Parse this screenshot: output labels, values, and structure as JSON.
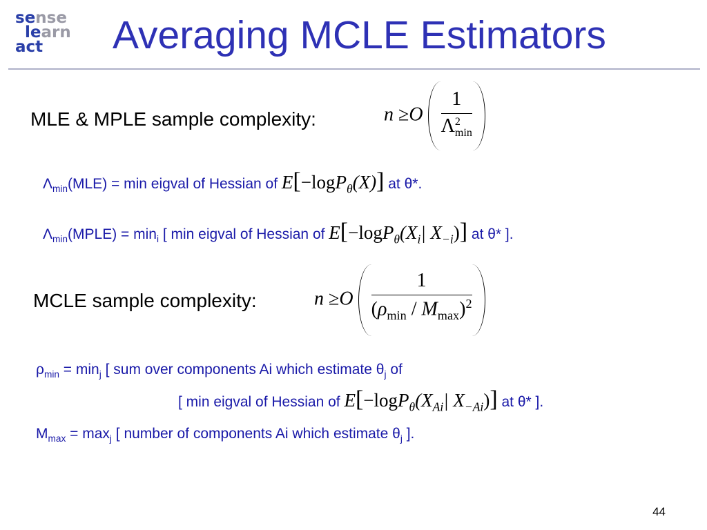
{
  "logo": {
    "parts": [
      "se",
      "nse",
      "le",
      "arn",
      "act"
    ]
  },
  "title": "Averaging MCLE Estimators",
  "mle_label": "MLE & MPLE sample complexity:",
  "mle_formula": [
    "n",
    "≥",
    "O",
    "1",
    "Λ",
    "2",
    "min"
  ],
  "mle_def": [
    "Λ",
    "min",
    "(MLE) = min eigval of Hessian of",
    "E",
    "[",
    "−log",
    "P",
    "θ",
    "(X)",
    "]",
    "at θ*."
  ],
  "mple_def": [
    "Λ",
    "min",
    "(MPLE) = min",
    "i",
    "[ min eigval of Hessian of",
    "E",
    "[",
    "−log",
    "P",
    "θ",
    "(X",
    "i",
    "| X",
    "−i",
    ")",
    "]",
    "at θ* ]."
  ],
  "mcle_label": "MCLE sample complexity:",
  "mcle_formula": [
    "n",
    "≥",
    "O",
    "1",
    "(",
    "ρ",
    "min",
    "/",
    "M",
    "max",
    ")",
    "2"
  ],
  "rho_def": [
    "ρ",
    "min",
    "= min",
    "j",
    "[ sum over components Ai which estimate θ",
    "j",
    "of"
  ],
  "rho_def2": [
    "[ min eigval of Hessian of",
    "E",
    "[",
    "−log",
    "P",
    "θ",
    "(X",
    "Ai",
    "| X",
    "−Ai",
    ")",
    "]",
    "at θ* ]."
  ],
  "m_def": [
    "M",
    "max",
    "= max",
    "j",
    "[ number of components Ai which estimate θ",
    "j",
    "]."
  ],
  "page_number": "44"
}
